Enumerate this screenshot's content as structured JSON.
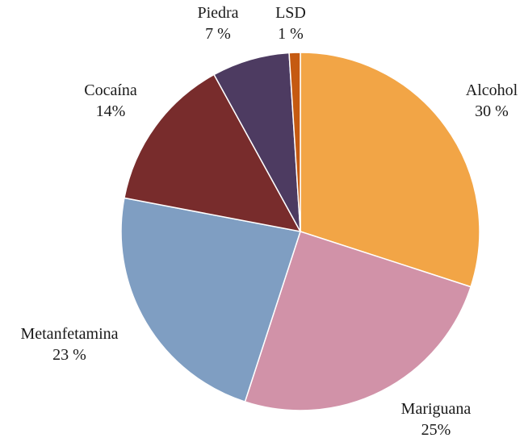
{
  "chart_data": {
    "type": "pie",
    "title": "",
    "legend": "none",
    "slices": [
      {
        "name": "Alcohol",
        "value": 30,
        "label": "30 %",
        "color": "#F2A546"
      },
      {
        "name": "Mariguana",
        "value": 25,
        "label": "25%",
        "color": "#D192A8"
      },
      {
        "name": "Metanfetamina",
        "value": 23,
        "label": "23 %",
        "color": "#7F9EC2"
      },
      {
        "name": "Cocaína",
        "value": 14,
        "label": "14%",
        "color": "#782C2C"
      },
      {
        "name": "Piedra",
        "value": 7,
        "label": "7 %",
        "color": "#4D3B61"
      },
      {
        "name": "LSD",
        "value": 1,
        "label": "1 %",
        "color": "#C55A11"
      }
    ]
  }
}
